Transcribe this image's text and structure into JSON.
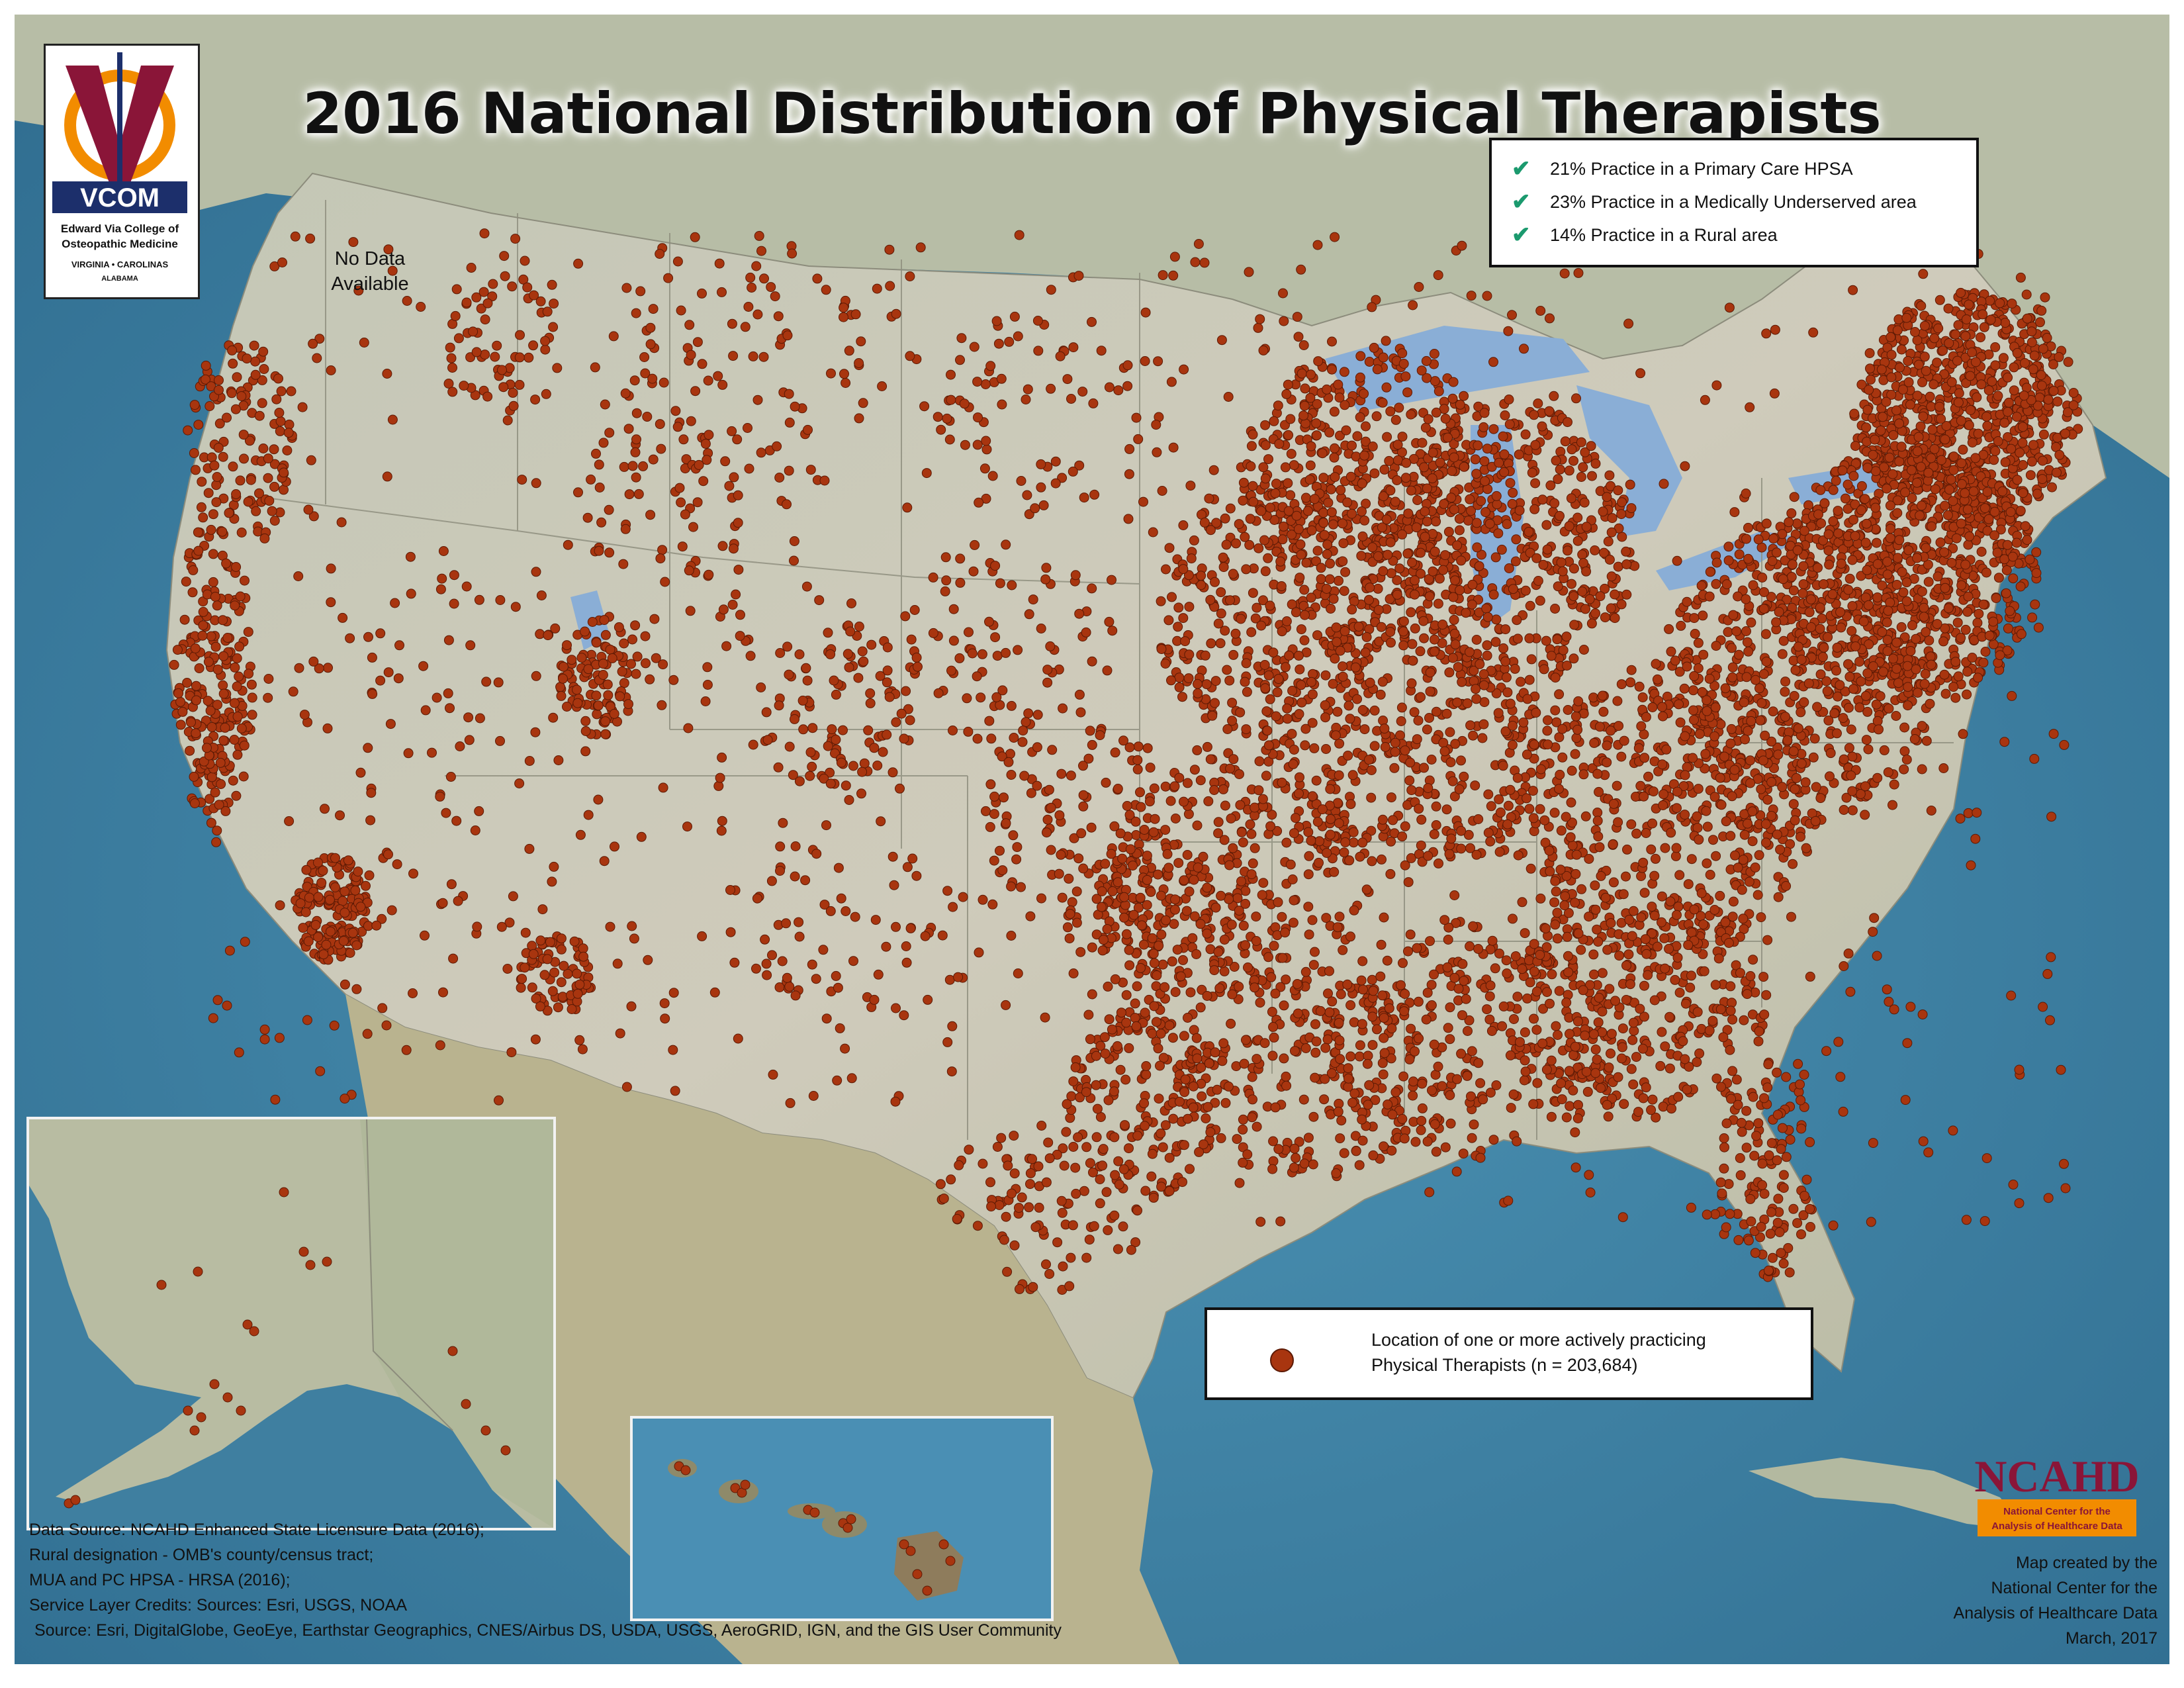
{
  "title": "2016 National Distribution of Physical Therapists",
  "vcom_logo": {
    "acronym": "VCOM",
    "name_line1": "Edward Via College of",
    "name_line2": "Osteopathic Medicine",
    "campuses": "VIRGINIA • CAROLINAS",
    "campus_sub": "ALABAMA",
    "colors": {
      "maroon": "#8a1538",
      "orange": "#f28c00",
      "navy": "#1c2f6b"
    }
  },
  "stats": [
    {
      "icon": "check-icon",
      "text": "21% Practice in a Primary Care HPSA"
    },
    {
      "icon": "check-icon",
      "text": "23% Practice in a Medically Underserved area"
    },
    {
      "icon": "check-icon",
      "text": "14% Practice in a Rural area"
    }
  ],
  "no_data_label": {
    "line1": "No Data",
    "line2": "Available"
  },
  "legend": {
    "line1": "Location of one or more actively practicing",
    "line2": "Physical Therapists (n = 203,684)",
    "marker_color": "#a8350f"
  },
  "credits": [
    "Data Source: NCAHD Enhanced State Licensure Data (2016);",
    "Rural designation - OMB's county/census tract;",
    "MUA and PC HPSA - HRSA (2016);",
    "Service Layer Credits: Sources: Esri, USGS, NOAA",
    "Source: Esri, DigitalGlobe, GeoEye, Earthstar Geographics, CNES/Airbus DS, USDA, USGS, AeroGRID, IGN, and the GIS User Community"
  ],
  "attribution": [
    "Map created by the",
    "National Center for the",
    "Analysis of Healthcare Data",
    "March, 2017"
  ],
  "ncahd_logo": {
    "acronym": "NCAHD",
    "sub1": "National Center for the",
    "sub2": "Analysis of Healthcare Data",
    "colors": {
      "text": "#8a1538",
      "band": "#f28c00"
    }
  },
  "colors": {
    "ocean": "#3e7ea0",
    "land": "#c9c7b8",
    "lakes": "#8aaed6",
    "dots": "#a8350f",
    "dot_outline": "#5c1a05"
  }
}
